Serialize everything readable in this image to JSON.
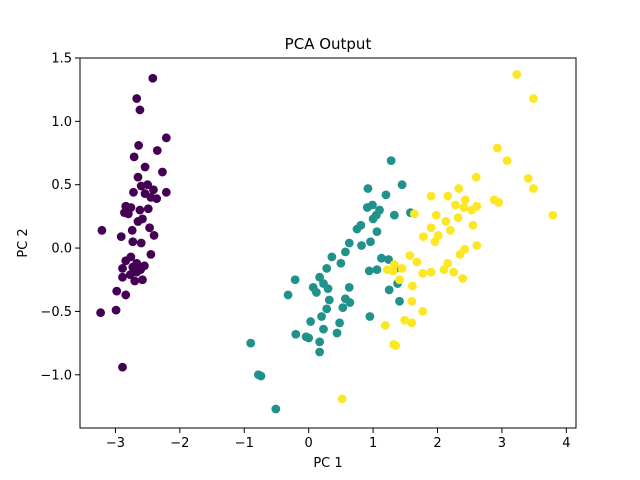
{
  "chart_data": {
    "type": "scatter",
    "title": "PCA Output",
    "xlabel": "PC 1",
    "ylabel": "PC 2",
    "xlim": [
      -3.55,
      4.15
    ],
    "ylim": [
      -1.42,
      1.5
    ],
    "xticks": [
      -3,
      -2,
      -1,
      0,
      1,
      2,
      3,
      4
    ],
    "yticks": [
      -1.0,
      -0.5,
      0.0,
      0.5,
      1.0,
      1.5
    ],
    "xtick_labels": [
      "−3",
      "−2",
      "−1",
      "0",
      "1",
      "2",
      "3",
      "4"
    ],
    "ytick_labels": [
      "−1.0",
      "−0.5",
      "0.0",
      "0.5",
      "1.0",
      "1.5"
    ],
    "grid": false,
    "legend": "none",
    "series": [
      {
        "color": "#440154",
        "points": [
          [
            -2.42,
            1.34
          ],
          [
            -2.67,
            1.18
          ],
          [
            -2.62,
            1.09
          ],
          [
            -2.21,
            0.87
          ],
          [
            -2.64,
            0.81
          ],
          [
            -2.35,
            0.77
          ],
          [
            -2.71,
            0.72
          ],
          [
            -2.54,
            0.64
          ],
          [
            -2.27,
            0.6
          ],
          [
            -2.65,
            0.56
          ],
          [
            -2.5,
            0.5
          ],
          [
            -2.6,
            0.49
          ],
          [
            -2.41,
            0.46
          ],
          [
            -2.72,
            0.44
          ],
          [
            -2.21,
            0.44
          ],
          [
            -2.54,
            0.43
          ],
          [
            -2.45,
            0.4
          ],
          [
            -2.36,
            0.39
          ],
          [
            -2.84,
            0.33
          ],
          [
            -2.76,
            0.32
          ],
          [
            -2.49,
            0.31
          ],
          [
            -2.62,
            0.3
          ],
          [
            -2.86,
            0.28
          ],
          [
            -2.8,
            0.27
          ],
          [
            -2.58,
            0.23
          ],
          [
            -2.65,
            0.21
          ],
          [
            -2.47,
            0.16
          ],
          [
            -2.74,
            0.14
          ],
          [
            -3.21,
            0.14
          ],
          [
            -2.4,
            0.1
          ],
          [
            -2.91,
            0.09
          ],
          [
            -2.73,
            0.05
          ],
          [
            -2.6,
            0.04
          ],
          [
            -2.45,
            -0.05
          ],
          [
            -2.76,
            -0.07
          ],
          [
            -2.84,
            -0.1
          ],
          [
            -2.67,
            -0.12
          ],
          [
            -2.55,
            -0.14
          ],
          [
            -2.73,
            -0.15
          ],
          [
            -2.89,
            -0.16
          ],
          [
            -2.61,
            -0.17
          ],
          [
            -2.67,
            -0.19
          ],
          [
            -2.77,
            -0.21
          ],
          [
            -2.89,
            -0.23
          ],
          [
            -2.58,
            -0.25
          ],
          [
            -2.7,
            -0.26
          ],
          [
            -2.98,
            -0.34
          ],
          [
            -2.84,
            -0.37
          ],
          [
            -2.99,
            -0.49
          ],
          [
            -3.23,
            -0.51
          ],
          [
            -2.89,
            -0.94
          ]
        ]
      },
      {
        "color": "#21918c",
        "points": [
          [
            1.28,
            0.69
          ],
          [
            0.91,
            0.32
          ],
          [
            0.99,
            0.34
          ],
          [
            1.45,
            0.5
          ],
          [
            1.2,
            0.42
          ],
          [
            0.92,
            0.47
          ],
          [
            1.05,
            0.26
          ],
          [
            1.1,
            0.3
          ],
          [
            1.58,
            0.28
          ],
          [
            1.33,
            0.26
          ],
          [
            0.81,
            0.18
          ],
          [
            1.0,
            0.23
          ],
          [
            0.75,
            0.15
          ],
          [
            1.06,
            0.13
          ],
          [
            0.63,
            0.04
          ],
          [
            0.96,
            0.05
          ],
          [
            0.82,
            0.02
          ],
          [
            1.13,
            -0.08
          ],
          [
            0.57,
            -0.03
          ],
          [
            0.36,
            -0.07
          ],
          [
            1.24,
            -0.09
          ],
          [
            0.5,
            -0.12
          ],
          [
            0.94,
            -0.18
          ],
          [
            1.35,
            -0.16
          ],
          [
            1.06,
            -0.17
          ],
          [
            0.28,
            -0.16
          ],
          [
            0.17,
            -0.23
          ],
          [
            -0.21,
            -0.25
          ],
          [
            0.3,
            -0.32
          ],
          [
            1.25,
            -0.33
          ],
          [
            1.38,
            -0.28
          ],
          [
            0.07,
            -0.31
          ],
          [
            0.23,
            -0.28
          ],
          [
            0.63,
            -0.31
          ],
          [
            0.12,
            -0.35
          ],
          [
            -0.32,
            -0.37
          ],
          [
            0.32,
            -0.41
          ],
          [
            0.57,
            -0.4
          ],
          [
            0.64,
            -0.43
          ],
          [
            1.41,
            -0.42
          ],
          [
            0.28,
            -0.48
          ],
          [
            0.53,
            -0.47
          ],
          [
            0.2,
            -0.54
          ],
          [
            0.95,
            -0.54
          ],
          [
            0.48,
            -0.59
          ],
          [
            0.03,
            -0.58
          ],
          [
            0.23,
            -0.64
          ],
          [
            0.44,
            -0.67
          ],
          [
            -0.2,
            -0.68
          ],
          [
            -0.04,
            -0.7
          ],
          [
            0.0,
            -0.71
          ],
          [
            0.17,
            -0.74
          ],
          [
            0.17,
            -0.82
          ],
          [
            -0.9,
            -0.75
          ],
          [
            -0.78,
            -1.0
          ],
          [
            -0.74,
            -1.01
          ],
          [
            -0.51,
            -1.27
          ]
        ]
      },
      {
        "color": "#fde725",
        "points": [
          [
            3.23,
            1.37
          ],
          [
            3.49,
            1.18
          ],
          [
            2.93,
            0.79
          ],
          [
            3.08,
            0.69
          ],
          [
            3.41,
            0.55
          ],
          [
            2.6,
            0.56
          ],
          [
            2.33,
            0.47
          ],
          [
            3.49,
            0.47
          ],
          [
            1.9,
            0.41
          ],
          [
            2.16,
            0.41
          ],
          [
            2.43,
            0.38
          ],
          [
            2.88,
            0.38
          ],
          [
            2.95,
            0.36
          ],
          [
            2.28,
            0.34
          ],
          [
            2.41,
            0.32
          ],
          [
            2.61,
            0.33
          ],
          [
            2.53,
            0.3
          ],
          [
            1.64,
            0.27
          ],
          [
            1.98,
            0.26
          ],
          [
            3.79,
            0.26
          ],
          [
            2.32,
            0.24
          ],
          [
            2.13,
            0.21
          ],
          [
            2.55,
            0.18
          ],
          [
            1.9,
            0.16
          ],
          [
            2.2,
            0.14
          ],
          [
            2.01,
            0.1
          ],
          [
            1.78,
            0.09
          ],
          [
            1.96,
            0.05
          ],
          [
            2.61,
            0.02
          ],
          [
            2.42,
            -0.01
          ],
          [
            1.57,
            -0.06
          ],
          [
            2.35,
            -0.05
          ],
          [
            1.68,
            -0.11
          ],
          [
            2.16,
            -0.12
          ],
          [
            1.33,
            -0.13
          ],
          [
            1.45,
            -0.16
          ],
          [
            1.22,
            -0.17
          ],
          [
            2.1,
            -0.17
          ],
          [
            1.31,
            -0.18
          ],
          [
            1.9,
            -0.19
          ],
          [
            2.25,
            -0.19
          ],
          [
            1.77,
            -0.2
          ],
          [
            2.39,
            -0.24
          ],
          [
            1.41,
            -0.25
          ],
          [
            1.61,
            -0.3
          ],
          [
            1.6,
            -0.42
          ],
          [
            1.77,
            -0.5
          ],
          [
            1.49,
            -0.57
          ],
          [
            1.6,
            -0.59
          ],
          [
            1.19,
            -0.61
          ],
          [
            1.32,
            -0.76
          ],
          [
            1.35,
            -0.77
          ],
          [
            0.52,
            -1.19
          ]
        ]
      }
    ]
  }
}
